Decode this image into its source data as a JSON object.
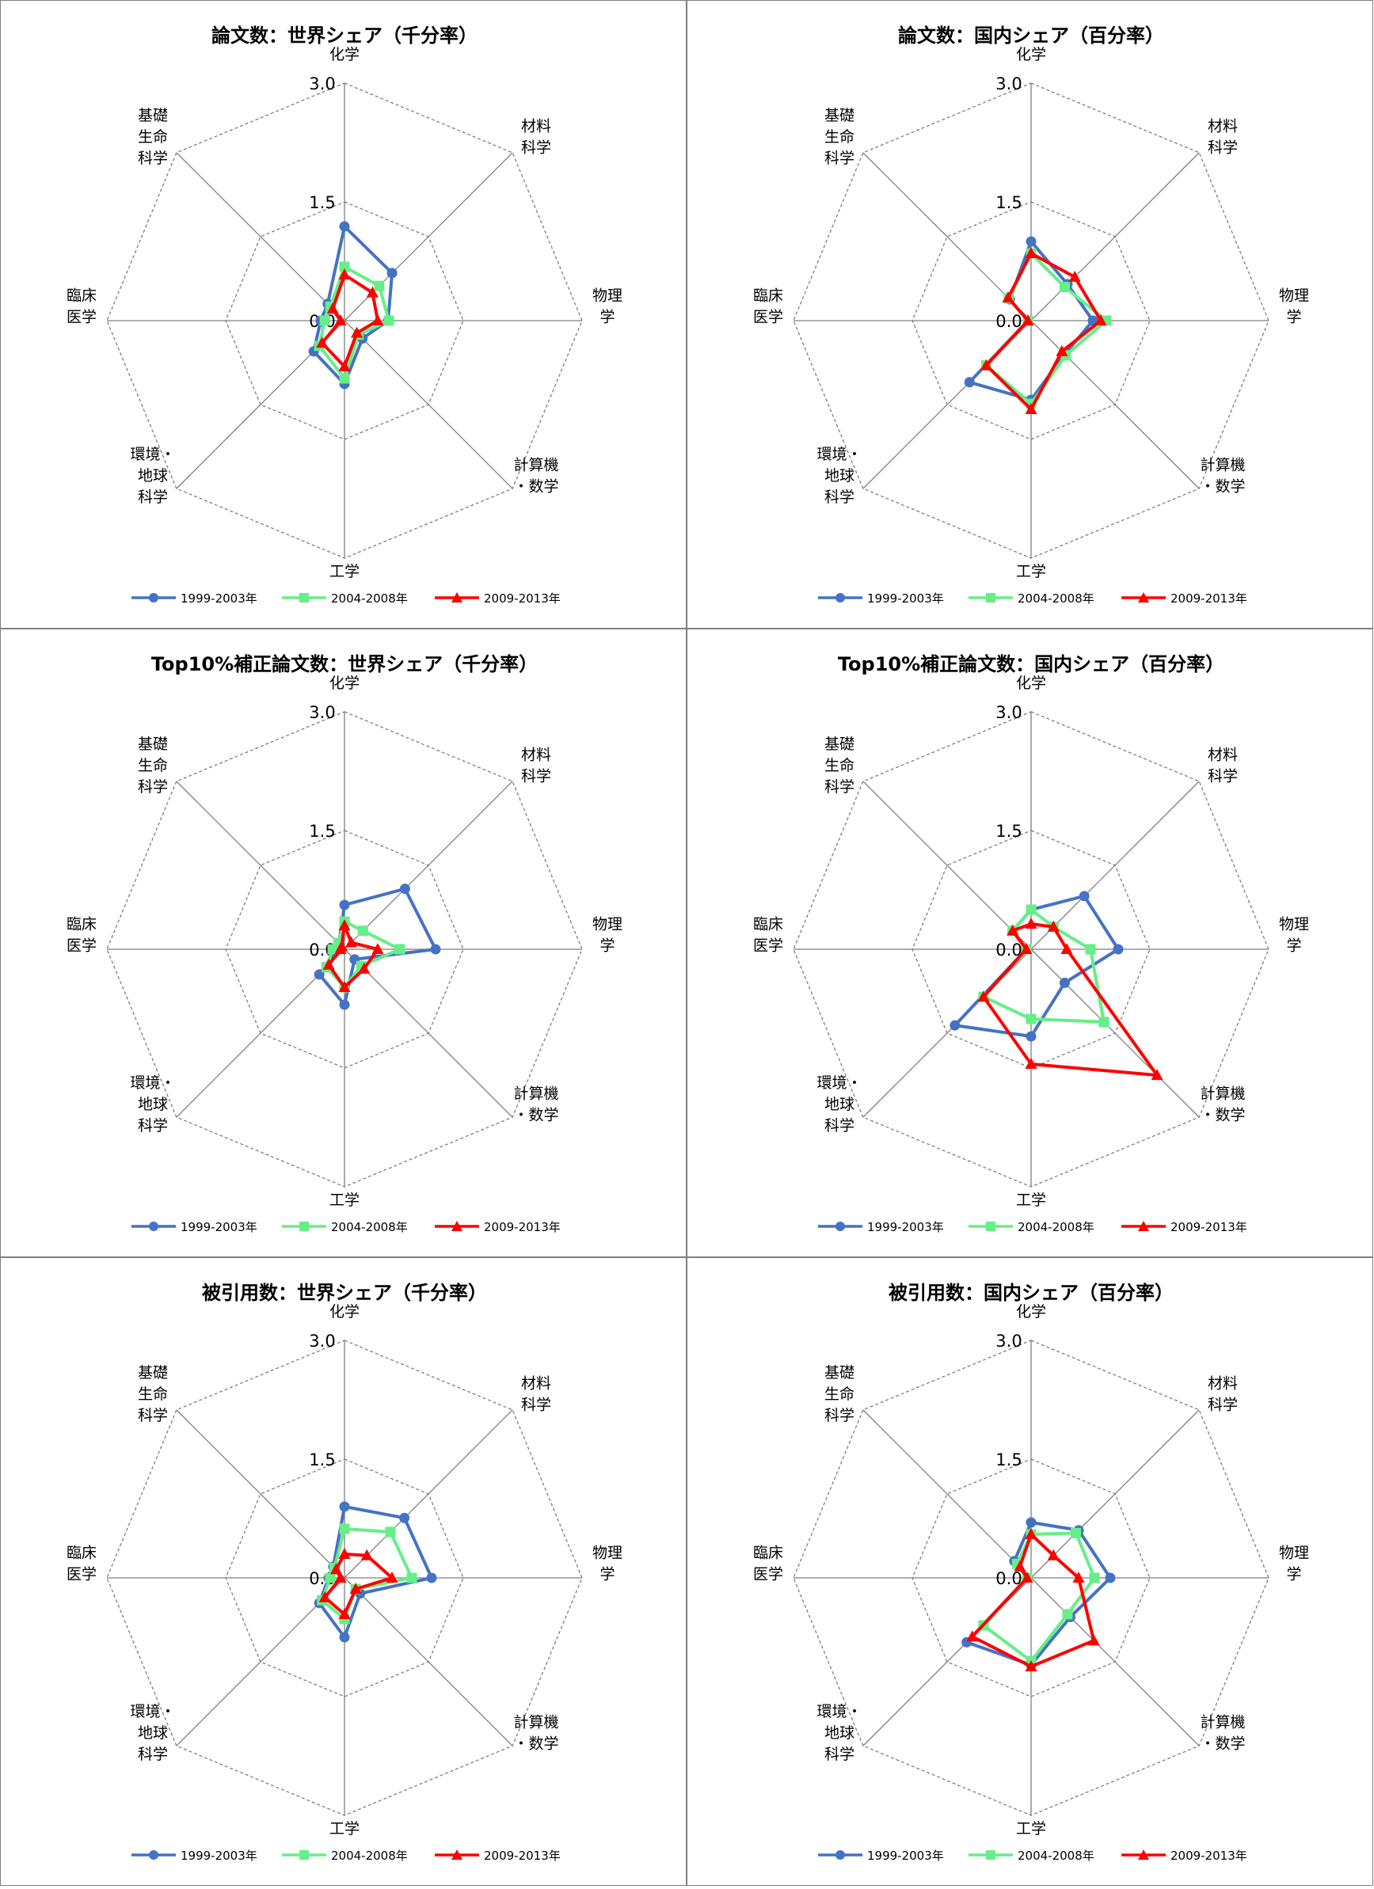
{
  "axis_labels": [
    "化学",
    "材料\n科学",
    "物理\n学",
    "計算機\n・数学",
    "工学",
    "環境・\n地球\n科学",
    "臨床\n医学",
    "基礎\n生命\n科学"
  ],
  "ticks": [
    "0.0",
    "1.5",
    "3.0"
  ],
  "series_meta": [
    {
      "name": "1999-2003年",
      "color": "#4472c4",
      "marker": "circle"
    },
    {
      "name": "2004-2008年",
      "color": "#66ee88",
      "marker": "square"
    },
    {
      "name": "2009-2013年",
      "color": "#ff0000",
      "marker": "triangle"
    }
  ],
  "chart_data": [
    {
      "type": "radar",
      "title": "論文数：世界シェア（千分率）",
      "categories": [
        "化学",
        "材料科学",
        "物理学",
        "計算機・数学",
        "工学",
        "環境・地球科学",
        "臨床医学",
        "基礎生命科学"
      ],
      "rmax": 3.0,
      "series": [
        {
          "name": "1999-2003年",
          "values": [
            1.19,
            0.85,
            0.55,
            0.32,
            0.8,
            0.55,
            0.3,
            0.3
          ]
        },
        {
          "name": "2004-2008年",
          "values": [
            0.68,
            0.62,
            0.56,
            0.25,
            0.73,
            0.45,
            0.25,
            0.25
          ]
        },
        {
          "name": "2009-2013年",
          "values": [
            0.58,
            0.5,
            0.42,
            0.22,
            0.58,
            0.4,
            0.05,
            0.21
          ]
        }
      ],
      "ylim": [
        0,
        3.0
      ]
    },
    {
      "type": "radar",
      "title": "論文数：国内シェア（百分率）",
      "categories": [
        "化学",
        "材料科学",
        "物理学",
        "計算機・数学",
        "工学",
        "環境・地球科学",
        "臨床医学",
        "基礎生命科学"
      ],
      "rmax": 3.0,
      "series": [
        {
          "name": "1999-2003年",
          "values": [
            1.0,
            0.65,
            0.78,
            0.6,
            1.0,
            1.1,
            0.04,
            0.38
          ]
        },
        {
          "name": "2004-2008年",
          "values": [
            0.85,
            0.6,
            0.95,
            0.62,
            1.05,
            0.8,
            0.04,
            0.4
          ]
        },
        {
          "name": "2009-2013年",
          "values": [
            0.85,
            0.78,
            0.88,
            0.55,
            1.12,
            0.8,
            0.04,
            0.41
          ]
        }
      ],
      "ylim": [
        0,
        3.0
      ]
    },
    {
      "type": "radar",
      "title": "Top10%補正論文数：世界シェア（千分率）",
      "categories": [
        "化学",
        "材料科学",
        "物理学",
        "計算機・数学",
        "工学",
        "環境・地球科学",
        "臨床医学",
        "基礎生命科学"
      ],
      "rmax": 3.0,
      "series": [
        {
          "name": "1999-2003年",
          "values": [
            0.56,
            1.08,
            1.15,
            0.18,
            0.7,
            0.45,
            0.1,
            0.1
          ]
        },
        {
          "name": "2004-2008年",
          "values": [
            0.35,
            0.33,
            0.7,
            0.3,
            0.48,
            0.32,
            0.15,
            0.11
          ]
        },
        {
          "name": "2009-2013年",
          "values": [
            0.3,
            0.12,
            0.42,
            0.35,
            0.48,
            0.28,
            0.05,
            0.05
          ]
        }
      ],
      "ylim": [
        0,
        3.0
      ]
    },
    {
      "type": "radar",
      "title": "Top10%補正論文数：国内シェア（百分率）",
      "categories": [
        "化学",
        "材料科学",
        "物理学",
        "計算機・数学",
        "工学",
        "環境・地球科学",
        "臨床医学",
        "基礎生命科学"
      ],
      "rmax": 3.0,
      "series": [
        {
          "name": "1999-2003年",
          "values": [
            0.5,
            0.95,
            1.1,
            0.6,
            1.1,
            1.36,
            0.06,
            0.33
          ]
        },
        {
          "name": "2004-2008年",
          "values": [
            0.5,
            0.4,
            0.75,
            1.3,
            0.88,
            0.85,
            0.06,
            0.33
          ]
        },
        {
          "name": "2009-2013年",
          "values": [
            0.32,
            0.4,
            0.45,
            2.25,
            1.45,
            0.85,
            0.06,
            0.33
          ]
        }
      ],
      "ylim": [
        0,
        3.0
      ]
    },
    {
      "type": "radar",
      "title": "被引用数：世界シェア（千分率）",
      "categories": [
        "化学",
        "材料科学",
        "物理学",
        "計算機・数学",
        "工学",
        "環境・地球科学",
        "臨床医学",
        "基礎生命科学"
      ],
      "rmax": 3.0,
      "series": [
        {
          "name": "1999-2003年",
          "values": [
            0.9,
            1.07,
            1.1,
            0.28,
            0.75,
            0.45,
            0.2,
            0.2
          ]
        },
        {
          "name": "2004-2008年",
          "values": [
            0.62,
            0.82,
            0.85,
            0.2,
            0.52,
            0.4,
            0.18,
            0.18
          ]
        },
        {
          "name": "2009-2013年",
          "values": [
            0.3,
            0.4,
            0.6,
            0.2,
            0.46,
            0.35,
            0.05,
            0.15
          ]
        }
      ],
      "ylim": [
        0,
        3.0
      ]
    },
    {
      "type": "radar",
      "title": "被引用数：国内シェア（百分率）",
      "categories": [
        "化学",
        "材料科学",
        "物理学",
        "計算機・数学",
        "工学",
        "環境・地球科学",
        "臨床医学",
        "基礎生命科学"
      ],
      "rmax": 3.0,
      "series": [
        {
          "name": "1999-2003年",
          "values": [
            0.7,
            0.85,
            1.0,
            0.7,
            1.1,
            1.15,
            0.05,
            0.3
          ]
        },
        {
          "name": "2004-2008年",
          "values": [
            0.55,
            0.8,
            0.8,
            0.65,
            1.05,
            0.85,
            0.05,
            0.25
          ]
        },
        {
          "name": "2009-2013年",
          "values": [
            0.55,
            0.4,
            0.6,
            1.12,
            1.12,
            1.05,
            0.05,
            0.2
          ]
        }
      ],
      "ylim": [
        0,
        3.0
      ]
    }
  ]
}
